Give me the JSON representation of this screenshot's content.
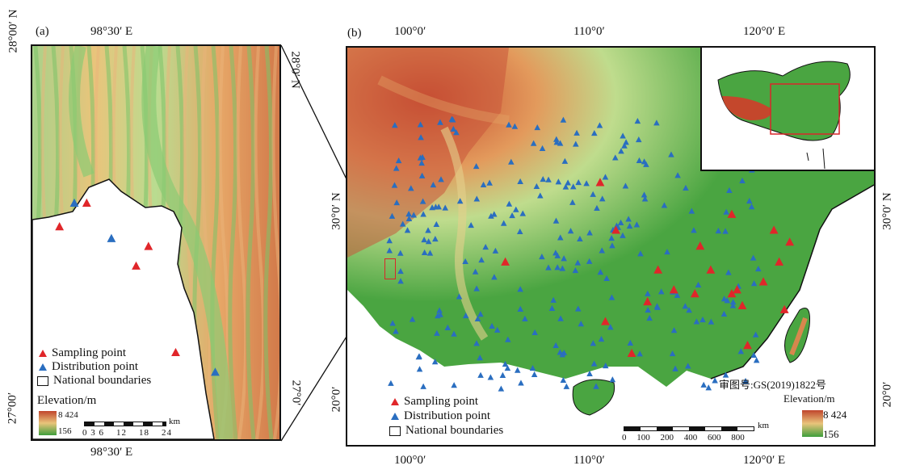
{
  "panel_a": {
    "label": "(a)",
    "top_lon": "98°30′ E",
    "bottom_lon": "98°30′ E",
    "left_lat_top": "28°00′ N",
    "right_lat_top": "28°0′ N",
    "left_lat_bottom": "27°00′",
    "right_lat_bottom": "27°0′",
    "legend": {
      "sampling": "Sampling point",
      "distribution": "Distribution point",
      "boundaries": "National boundaries",
      "elevation_title": "Elevation/m",
      "elev_max": "8 424",
      "elev_min": "156",
      "scale_unit": "km",
      "scale_ticks": [
        "0",
        "3",
        "6",
        "12",
        "18",
        "24"
      ]
    }
  },
  "panel_b": {
    "label": "(b)",
    "top_lons": [
      "100°0′",
      "110°0′",
      "120°0′ E"
    ],
    "bottom_lons": [
      "100°0′",
      "110°0′",
      "120°0′ E"
    ],
    "left_lats": [
      "30°0′ N",
      "20°0′"
    ],
    "right_lats": [
      "30°0′ N",
      "20°0′"
    ],
    "approval": "审图号:GS(2019)1822号",
    "legend": {
      "sampling": "Sampling point",
      "distribution": "Distribution point",
      "boundaries": "National boundaries",
      "elevation_title": "Elevation/m",
      "elev_max": "8 424",
      "elev_min": "156",
      "scale_unit": "km",
      "scale_ticks": [
        "0",
        "100",
        "200",
        "400",
        "600",
        "800"
      ]
    }
  },
  "colors": {
    "sampling": "#e0262a",
    "distribution": "#2a6ec0",
    "lowland": "#3f9e3c",
    "highland": "#c0452c",
    "inset_box": "#d9262a"
  },
  "sampling_points_a": [
    [
      0.22,
      0.4
    ],
    [
      0.11,
      0.46
    ],
    [
      0.47,
      0.51
    ],
    [
      0.42,
      0.56
    ],
    [
      0.58,
      0.78
    ]
  ],
  "distribution_points_a": [
    [
      0.17,
      0.4
    ],
    [
      0.32,
      0.49
    ],
    [
      0.74,
      0.83
    ]
  ],
  "sampling_points_b": [
    [
      0.48,
      0.34
    ],
    [
      0.51,
      0.46
    ],
    [
      0.62,
      0.61
    ],
    [
      0.59,
      0.56
    ],
    [
      0.57,
      0.64
    ],
    [
      0.54,
      0.77
    ],
    [
      0.66,
      0.62
    ],
    [
      0.67,
      0.5
    ],
    [
      0.69,
      0.56
    ],
    [
      0.73,
      0.42
    ],
    [
      0.74,
      0.61
    ],
    [
      0.75,
      0.65
    ],
    [
      0.76,
      0.75
    ],
    [
      0.79,
      0.59
    ],
    [
      0.81,
      0.46
    ],
    [
      0.82,
      0.54
    ],
    [
      0.83,
      0.66
    ],
    [
      0.84,
      0.49
    ],
    [
      0.3,
      0.54
    ],
    [
      0.49,
      0.69
    ],
    [
      0.73,
      0.62
    ]
  ]
}
